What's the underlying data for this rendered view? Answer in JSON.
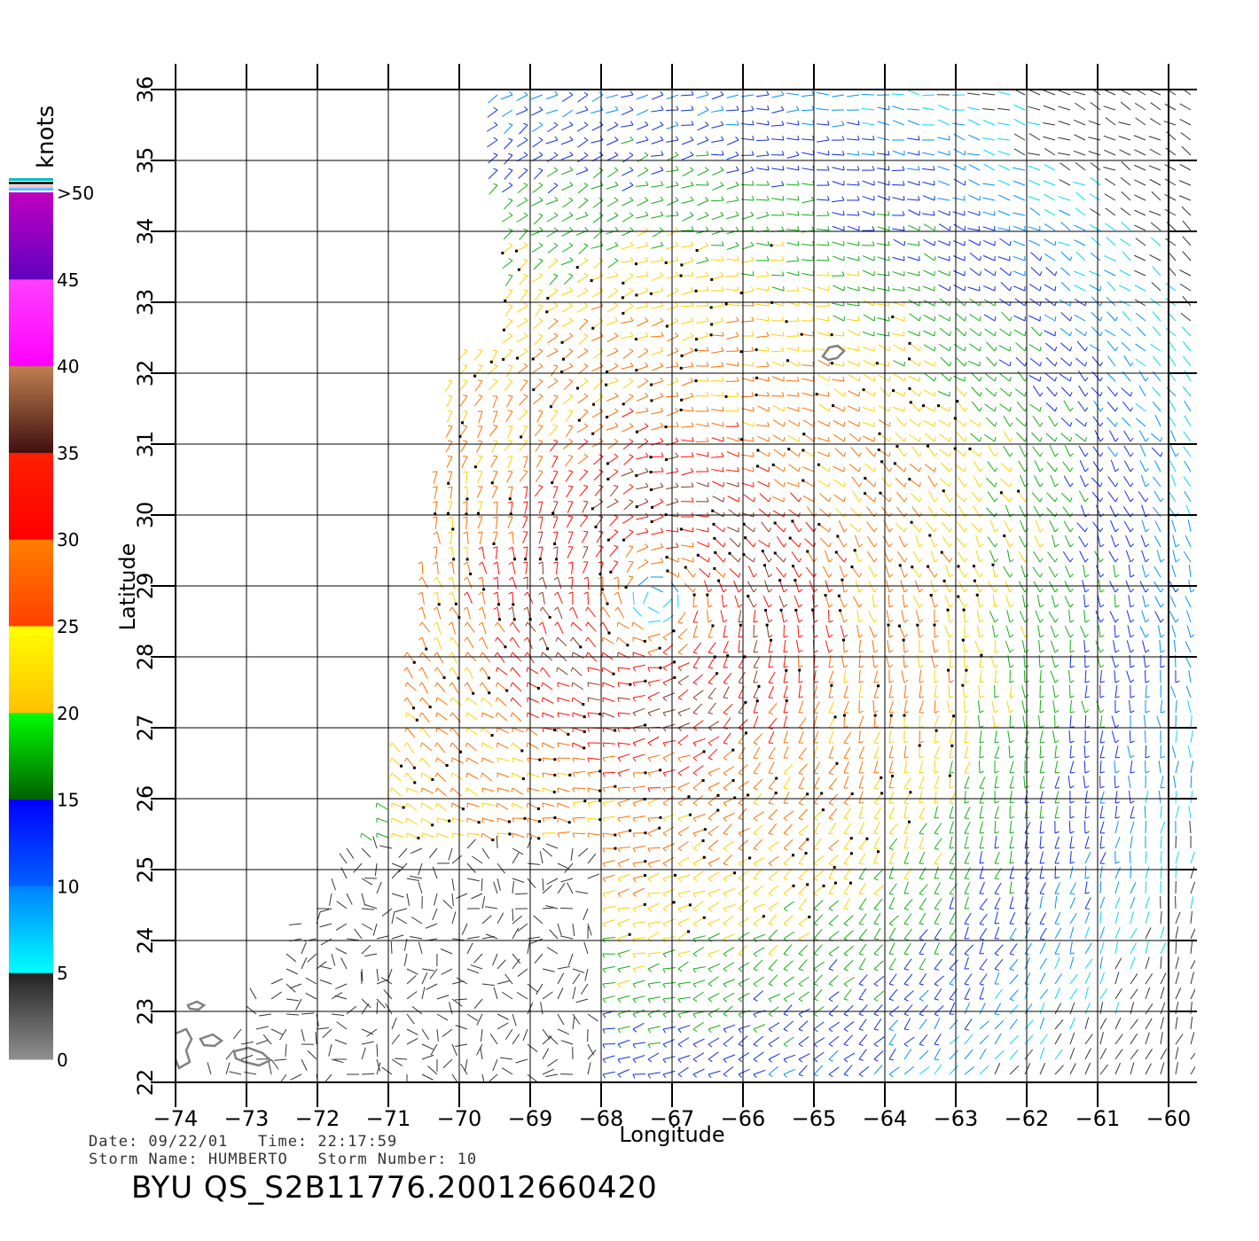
{
  "map": {
    "lon_range": [
      -74,
      -60
    ],
    "lat_range": [
      22,
      36
    ],
    "lon_ticks": [
      "−74",
      "−73",
      "−72",
      "−71",
      "−70",
      "−69",
      "−68",
      "−67",
      "−66",
      "−65",
      "−64",
      "−63",
      "−62",
      "−61",
      "−60"
    ],
    "lat_ticks": [
      "22",
      "23",
      "24",
      "25",
      "26",
      "27",
      "28",
      "29",
      "30",
      "31",
      "32",
      "33",
      "34",
      "35",
      "36"
    ],
    "xlabel": "Longitude",
    "ylabel": "Latitude",
    "storm_center": {
      "lon": -67.2,
      "lat": 28.8
    },
    "land_color": "#808080",
    "grid": true
  },
  "colorbar": {
    "unit_label": "knots",
    "labels": [
      ">50",
      "45",
      "40",
      "35",
      "30",
      "25",
      "20",
      "15",
      "10",
      "5",
      "0"
    ],
    "bands": [
      {
        "from": 0,
        "to": 5,
        "top": "#222222",
        "bottom": "#909090"
      },
      {
        "from": 5,
        "to": 10,
        "top": "#0080ff",
        "bottom": "#00ffff"
      },
      {
        "from": 10,
        "to": 15,
        "top": "#0000ff",
        "bottom": "#0060ff"
      },
      {
        "from": 15,
        "to": 20,
        "top": "#00ff00",
        "bottom": "#006000"
      },
      {
        "from": 20,
        "to": 25,
        "top": "#ffff00",
        "bottom": "#ffc000"
      },
      {
        "from": 25,
        "to": 30,
        "top": "#ff8000",
        "bottom": "#ff4000"
      },
      {
        "from": 30,
        "to": 35,
        "top": "#ff2000",
        "bottom": "#ff0000"
      },
      {
        "from": 35,
        "to": 40,
        "top": "#c08050",
        "bottom": "#401010"
      },
      {
        "from": 40,
        "to": 45,
        "top": "#ff40ff",
        "bottom": "#ff00ff"
      },
      {
        "from": 45,
        "to": 50,
        "top": "#c000c0",
        "bottom": "#6000c0"
      }
    ]
  },
  "info": {
    "date_line": "Date: 09/22/01   Time: 22:17:59",
    "storm_line": "Storm Name: HUMBERTO   Storm Number: 10",
    "product": "BYU QS_S2B11776.20012660420"
  }
}
